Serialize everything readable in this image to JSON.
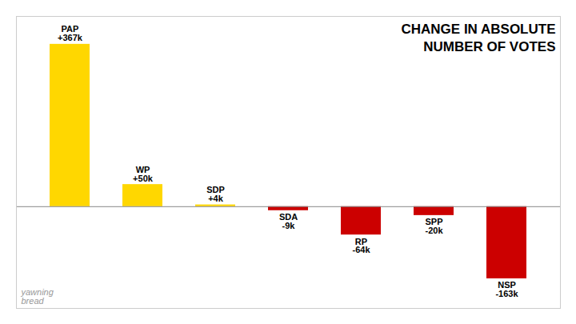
{
  "chart_data": {
    "type": "bar",
    "title": "CHANGE IN ABSOLUTE\nNUMBER OF VOTES",
    "categories": [
      "PAP",
      "WP",
      "SDP",
      "SDA",
      "RP",
      "SPP",
      "NSP"
    ],
    "values": [
      367,
      50,
      4,
      -9,
      -64,
      -20,
      -163
    ],
    "value_labels": [
      "+367k",
      "+50k",
      "+4k",
      "-9k",
      "-64k",
      "-20k",
      "-163k"
    ],
    "colors": [
      "#FFD700",
      "#FFD700",
      "#FFD700",
      "#CC0000",
      "#CC0000",
      "#CC0000",
      "#CC0000"
    ],
    "ylim": [
      -230,
      430
    ],
    "data_labels": true,
    "tick_labels": false,
    "grid": false,
    "annotations": [
      "yawning\nbread"
    ]
  }
}
